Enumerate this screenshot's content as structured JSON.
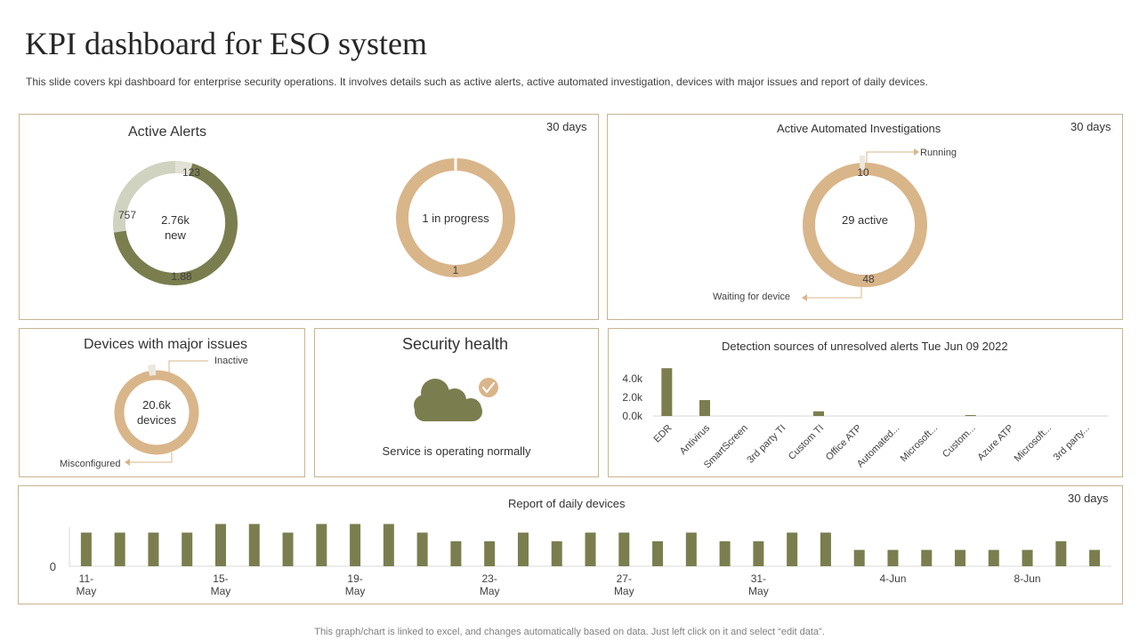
{
  "page": {
    "title": "KPI dashboard for ESO system",
    "subtitle": "This slide covers kpi dashboard for enterprise security operations. It involves details such as active alerts, active automated investigation, devices with major issues and report of daily devices.",
    "footer": "This graph/chart is linked to excel,  and changes automatically based on data. Just left click on it and select “edit data”."
  },
  "colors": {
    "olive": "#7a7e4f",
    "tan": "#d9b58a",
    "sage": "#cfd3c0",
    "border": "#c9b48f",
    "light": "#ece8df"
  },
  "active_alerts": {
    "title": "Active Alerts",
    "period": "30 days",
    "donut": {
      "center_line1": "2.76k",
      "center_line2": "new",
      "segments": [
        {
          "label": "123",
          "value": 123,
          "color": "#e4e2d6"
        },
        {
          "label": "1.88",
          "value": 1880,
          "color": "#7a7e4f"
        },
        {
          "label": "757",
          "value": 757,
          "color": "#cfd3c0"
        }
      ]
    },
    "progress": {
      "center": "1 in progress",
      "bottom_label": "1",
      "value": 1
    }
  },
  "investigations": {
    "title": "Active Automated Investigations",
    "period": "30 days",
    "center": "29 active",
    "running_value": "10",
    "running_label": "Running",
    "waiting_value": "48",
    "waiting_label": "Waiting  for device"
  },
  "devices": {
    "title": "Devices with major issues",
    "center_line1": "20.6k",
    "center_line2": "devices",
    "inactive_label": "Inactive",
    "misconfigured_label": "Misconfigured"
  },
  "security": {
    "title": "Security health",
    "status": "Service  is operating normally"
  },
  "detection": {
    "title": "Detection sources of unresolved alerts Tue Jun 09 2022"
  },
  "daily": {
    "title": "Report  of daily devices",
    "period": "30 days"
  },
  "chart_data": [
    {
      "type": "bar",
      "title": "Detection sources of unresolved alerts Tue Jun 09 2022",
      "categories": [
        "EDR",
        "Antivirus",
        "SmartScreen",
        "3rd party TI",
        "Custom TI",
        "Office ATP",
        "Automated...",
        "Microsoft...",
        "Custom...",
        "Azure ATP",
        "Microsoft...",
        "3rd party..."
      ],
      "values": [
        5100,
        1700,
        0,
        0,
        500,
        0,
        0,
        0,
        100,
        0,
        0,
        0
      ],
      "yticks": [
        "4.0k",
        "2.0k",
        "0.0k"
      ],
      "ylim": [
        0,
        5500
      ]
    },
    {
      "type": "bar",
      "title": "Report  of daily devices",
      "zero_label": "0",
      "tick_labels": [
        {
          "index": 0,
          "line1": "11-",
          "line2": "May"
        },
        {
          "index": 4,
          "line1": "15-",
          "line2": "May"
        },
        {
          "index": 8,
          "line1": "19-",
          "line2": "May"
        },
        {
          "index": 12,
          "line1": "23-",
          "line2": "May"
        },
        {
          "index": 16,
          "line1": "27-",
          "line2": "May"
        },
        {
          "index": 20,
          "line1": "31-",
          "line2": "May"
        },
        {
          "index": 24,
          "line1": "4-Jun",
          "line2": ""
        },
        {
          "index": 28,
          "line1": "8-Jun",
          "line2": ""
        }
      ],
      "values": [
        35,
        35,
        35,
        35,
        44,
        44,
        35,
        44,
        44,
        44,
        35,
        26,
        26,
        35,
        26,
        35,
        35,
        26,
        35,
        26,
        26,
        35,
        35,
        17,
        17,
        17,
        17,
        17,
        17,
        26,
        17
      ],
      "ylim": [
        0,
        50
      ]
    }
  ]
}
